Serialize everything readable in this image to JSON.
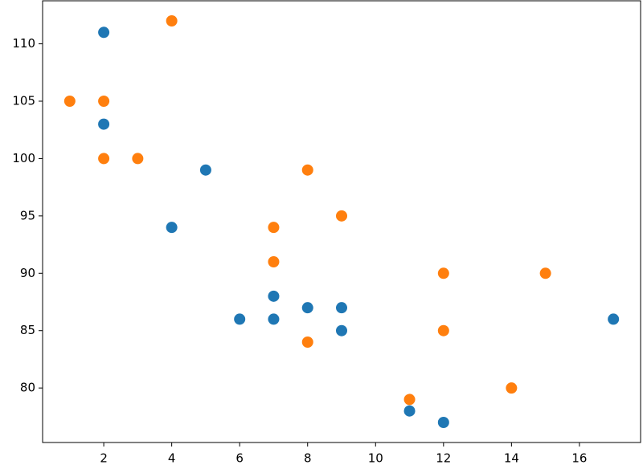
{
  "chart_data": {
    "type": "scatter",
    "series": [
      {
        "color": "#1f77b4",
        "x": [
          5,
          7,
          8,
          7,
          2,
          17,
          2,
          9,
          4,
          11,
          12,
          9,
          6
        ],
        "values": [
          99,
          86,
          87,
          88,
          111,
          86,
          103,
          87,
          94,
          78,
          77,
          85,
          86
        ]
      },
      {
        "color": "#ff7f0e",
        "x": [
          2,
          2,
          8,
          1,
          15,
          8,
          12,
          9,
          7,
          3,
          11,
          4,
          7,
          14,
          12
        ],
        "values": [
          100,
          105,
          84,
          105,
          90,
          99,
          90,
          95,
          94,
          100,
          79,
          112,
          91,
          80,
          85
        ]
      }
    ],
    "xlim": [
      0.2,
      17.8
    ],
    "ylim": [
      75.25,
      113.75
    ],
    "xticks": [
      2,
      4,
      6,
      8,
      10,
      12,
      14,
      16
    ],
    "yticks": [
      80,
      85,
      90,
      95,
      100,
      105,
      110
    ]
  }
}
